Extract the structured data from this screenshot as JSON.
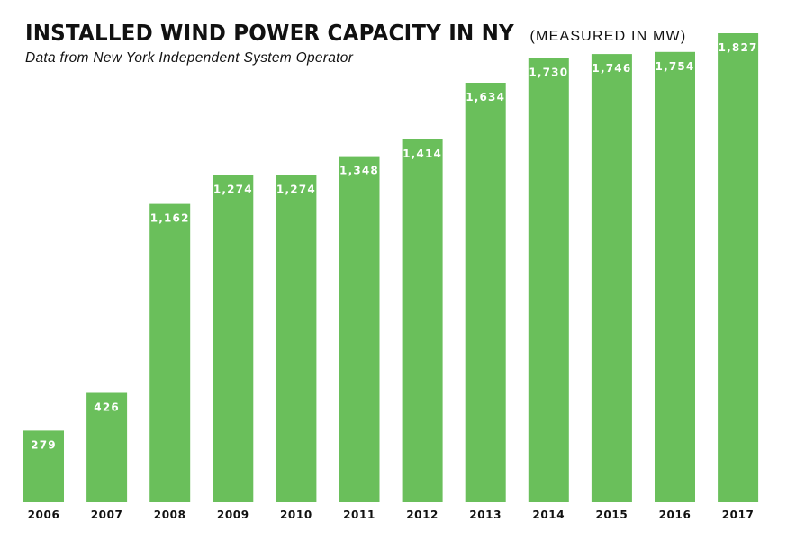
{
  "chart_data": {
    "type": "bar",
    "title": "INSTALLED WIND POWER CAPACITY IN NY",
    "title_note": "(MEASURED IN MW)",
    "subtitle": "Data from New York Independent System Operator",
    "categories": [
      "2006",
      "2007",
      "2008",
      "2009",
      "2010",
      "2011",
      "2012",
      "2013",
      "2014",
      "2015",
      "2016",
      "2017"
    ],
    "values": [
      279,
      426,
      1162,
      1274,
      1274,
      1348,
      1414,
      1634,
      1730,
      1746,
      1754,
      1827
    ],
    "value_labels": [
      "279",
      "426",
      "1,162",
      "1,274",
      "1,274",
      "1,348",
      "1,414",
      "1,634",
      "1,730",
      "1,746",
      "1,754",
      "1,827"
    ],
    "ylim": [
      0,
      1827
    ],
    "grid": false,
    "bar_color": "#6abf5b"
  }
}
